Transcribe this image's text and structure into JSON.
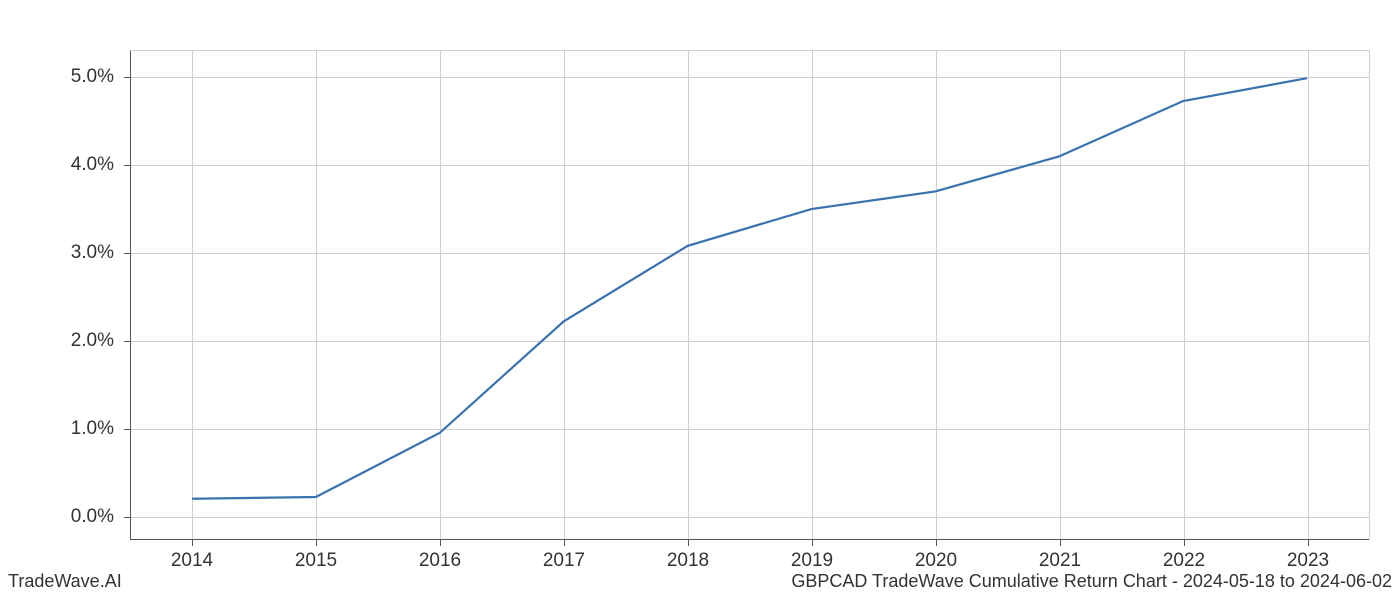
{
  "chart": {
    "type": "line",
    "x_years": [
      2014,
      2015,
      2016,
      2017,
      2018,
      2019,
      2020,
      2021,
      2022,
      2023
    ],
    "y_values": [
      0.2,
      0.22,
      0.95,
      2.22,
      3.08,
      3.5,
      3.7,
      4.1,
      4.73,
      4.99
    ],
    "x_extent_min": 2013.5,
    "x_extent_max": 2023.5,
    "y_extent_min": -0.27,
    "y_extent_max": 5.3,
    "x_ticks": [
      2014,
      2015,
      2016,
      2017,
      2018,
      2019,
      2020,
      2021,
      2022,
      2023
    ],
    "x_tick_labels": [
      "2014",
      "2015",
      "2016",
      "2017",
      "2018",
      "2019",
      "2020",
      "2021",
      "2022",
      "2023"
    ],
    "y_ticks": [
      0,
      1,
      2,
      3,
      4,
      5
    ],
    "y_tick_labels": [
      "0.0%",
      "1.0%",
      "2.0%",
      "3.0%",
      "4.0%",
      "5.0%"
    ],
    "line_color": "#3a72b0",
    "line_width": 2.2,
    "grid_color": "#d0d0d0",
    "axis_color": "#555555",
    "background_color": "#ffffff",
    "tick_label_fontsize": 19,
    "tick_label_color": "#333333"
  },
  "footer": {
    "left": "TradeWave.AI",
    "right": "GBPCAD TradeWave Cumulative Return Chart - 2024-05-18 to 2024-06-02",
    "fontsize": 18,
    "color": "#333333"
  }
}
